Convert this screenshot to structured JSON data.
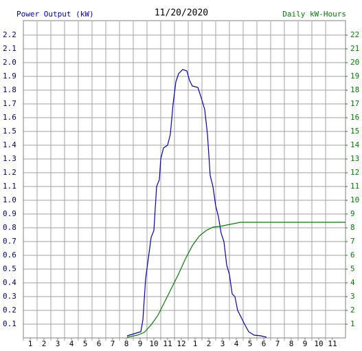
{
  "chart_data": {
    "type": "line",
    "title": "11/20/2020",
    "y_label": "Power Output (kW)",
    "y2_label": "Daily kW-Hours",
    "grid": true,
    "xlim": [
      0.5,
      23.95
    ],
    "xticks": [
      1,
      2,
      3,
      4,
      5,
      6,
      7,
      8,
      9,
      10,
      11,
      12,
      {
        "value": 13,
        "label": "1"
      },
      {
        "value": 14,
        "label": "2"
      },
      {
        "value": 15,
        "label": "3"
      },
      {
        "value": 16,
        "label": "4"
      },
      {
        "value": 17,
        "label": "5"
      },
      {
        "value": 18,
        "label": "6"
      },
      {
        "value": 19,
        "label": "7"
      },
      {
        "value": 20,
        "label": "8"
      },
      {
        "value": 21,
        "label": "9"
      },
      {
        "value": 22,
        "label": "10"
      },
      {
        "value": 23,
        "label": "11"
      }
    ],
    "ylim": [
      0,
      2.3
    ],
    "yticks": [
      0.1,
      0.2,
      0.3,
      0.4,
      0.5,
      0.6,
      0.7,
      0.8,
      0.9,
      {
        "value": 1,
        "label": "1.0"
      },
      1.1,
      1.2,
      1.3,
      1.4,
      1.5,
      1.6,
      1.7,
      1.8,
      1.9,
      {
        "value": 2,
        "label": "2.0"
      },
      2.1,
      2.2
    ],
    "y2lim": [
      0,
      23
    ],
    "y2ticks": [
      1,
      2,
      3,
      4,
      5,
      6,
      7,
      8,
      9,
      10,
      11,
      12,
      13,
      14,
      15,
      16,
      17,
      18,
      19,
      20,
      21,
      22
    ],
    "series": [
      {
        "name": "Power Output (kW)",
        "color": "#0000c0",
        "x": [
          8.05,
          8.55,
          9.05,
          9.2,
          9.4,
          9.6,
          9.8,
          10,
          10.2,
          10.4,
          10.5,
          10.7,
          11,
          11.2,
          11.4,
          11.6,
          11.8,
          12.1,
          12.4,
          12.6,
          12.8,
          13.2,
          13.4,
          13.7,
          13.9,
          14.1,
          14.3,
          14.5,
          14.7,
          14.9,
          15.1,
          15.3,
          15.5,
          15.7,
          15.9,
          16.1,
          16.3,
          16.6,
          16.9,
          17.3,
          17.8,
          18.2
        ],
        "values": [
          0.015,
          0.03,
          0.045,
          0.13,
          0.43,
          0.58,
          0.73,
          0.78,
          1.1,
          1.15,
          1.3,
          1.38,
          1.4,
          1.48,
          1.7,
          1.86,
          1.92,
          1.95,
          1.94,
          1.87,
          1.83,
          1.82,
          1.76,
          1.66,
          1.48,
          1.18,
          1.1,
          0.96,
          0.88,
          0.76,
          0.7,
          0.53,
          0.46,
          0.32,
          0.3,
          0.2,
          0.16,
          0.1,
          0.045,
          0.02,
          0.015,
          0.005
        ]
      },
      {
        "name": "Daily kW-Hours",
        "color": "#008000",
        "axis": "y2",
        "x": [
          8.05,
          8.8,
          9.3,
          9.8,
          10.3,
          10.8,
          11.3,
          11.8,
          12.3,
          12.8,
          13.3,
          13.8,
          14.3,
          14.8,
          15.3,
          15.8,
          16.3,
          23.95
        ],
        "values": [
          0.05,
          0.2,
          0.4,
          0.95,
          1.65,
          2.65,
          3.65,
          4.65,
          5.75,
          6.7,
          7.4,
          7.8,
          8.05,
          8.1,
          8.2,
          8.3,
          8.4,
          8.4
        ]
      }
    ]
  }
}
